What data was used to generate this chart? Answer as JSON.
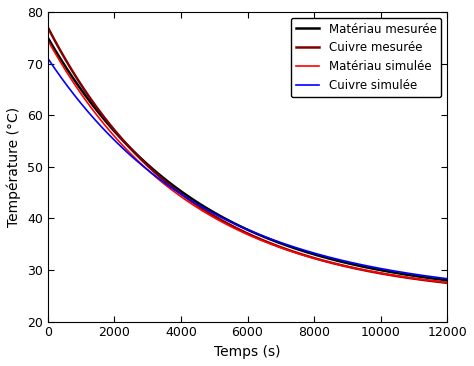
{
  "title": "",
  "xlabel": "Temps (s)",
  "ylabel": "Température (°C)",
  "xlim": [
    0,
    12000
  ],
  "ylim": [
    20,
    80
  ],
  "xticks": [
    0,
    2000,
    4000,
    6000,
    8000,
    10000,
    12000
  ],
  "yticks": [
    20,
    30,
    40,
    50,
    60,
    70,
    80
  ],
  "lines": [
    {
      "label": "Matériau mesurée",
      "color": "#000000",
      "linewidth": 1.8,
      "T0": 75.0,
      "Tinf": 24.5,
      "tau": 4500
    },
    {
      "label": "Cuivre mesurée",
      "color": "#800000",
      "linewidth": 1.8,
      "T0": 77.0,
      "Tinf": 24.5,
      "tau": 4200
    },
    {
      "label": "Matériau simulée",
      "color": "#ff0000",
      "linewidth": 1.2,
      "T0": 74.5,
      "Tinf": 24.5,
      "tau": 4300
    },
    {
      "label": "Cuivre simulée",
      "color": "#0000ff",
      "linewidth": 1.2,
      "T0": 71.0,
      "Tinf": 24.5,
      "tau": 4800
    }
  ],
  "legend_loc": "upper right",
  "background_color": "#ffffff",
  "grid": false
}
